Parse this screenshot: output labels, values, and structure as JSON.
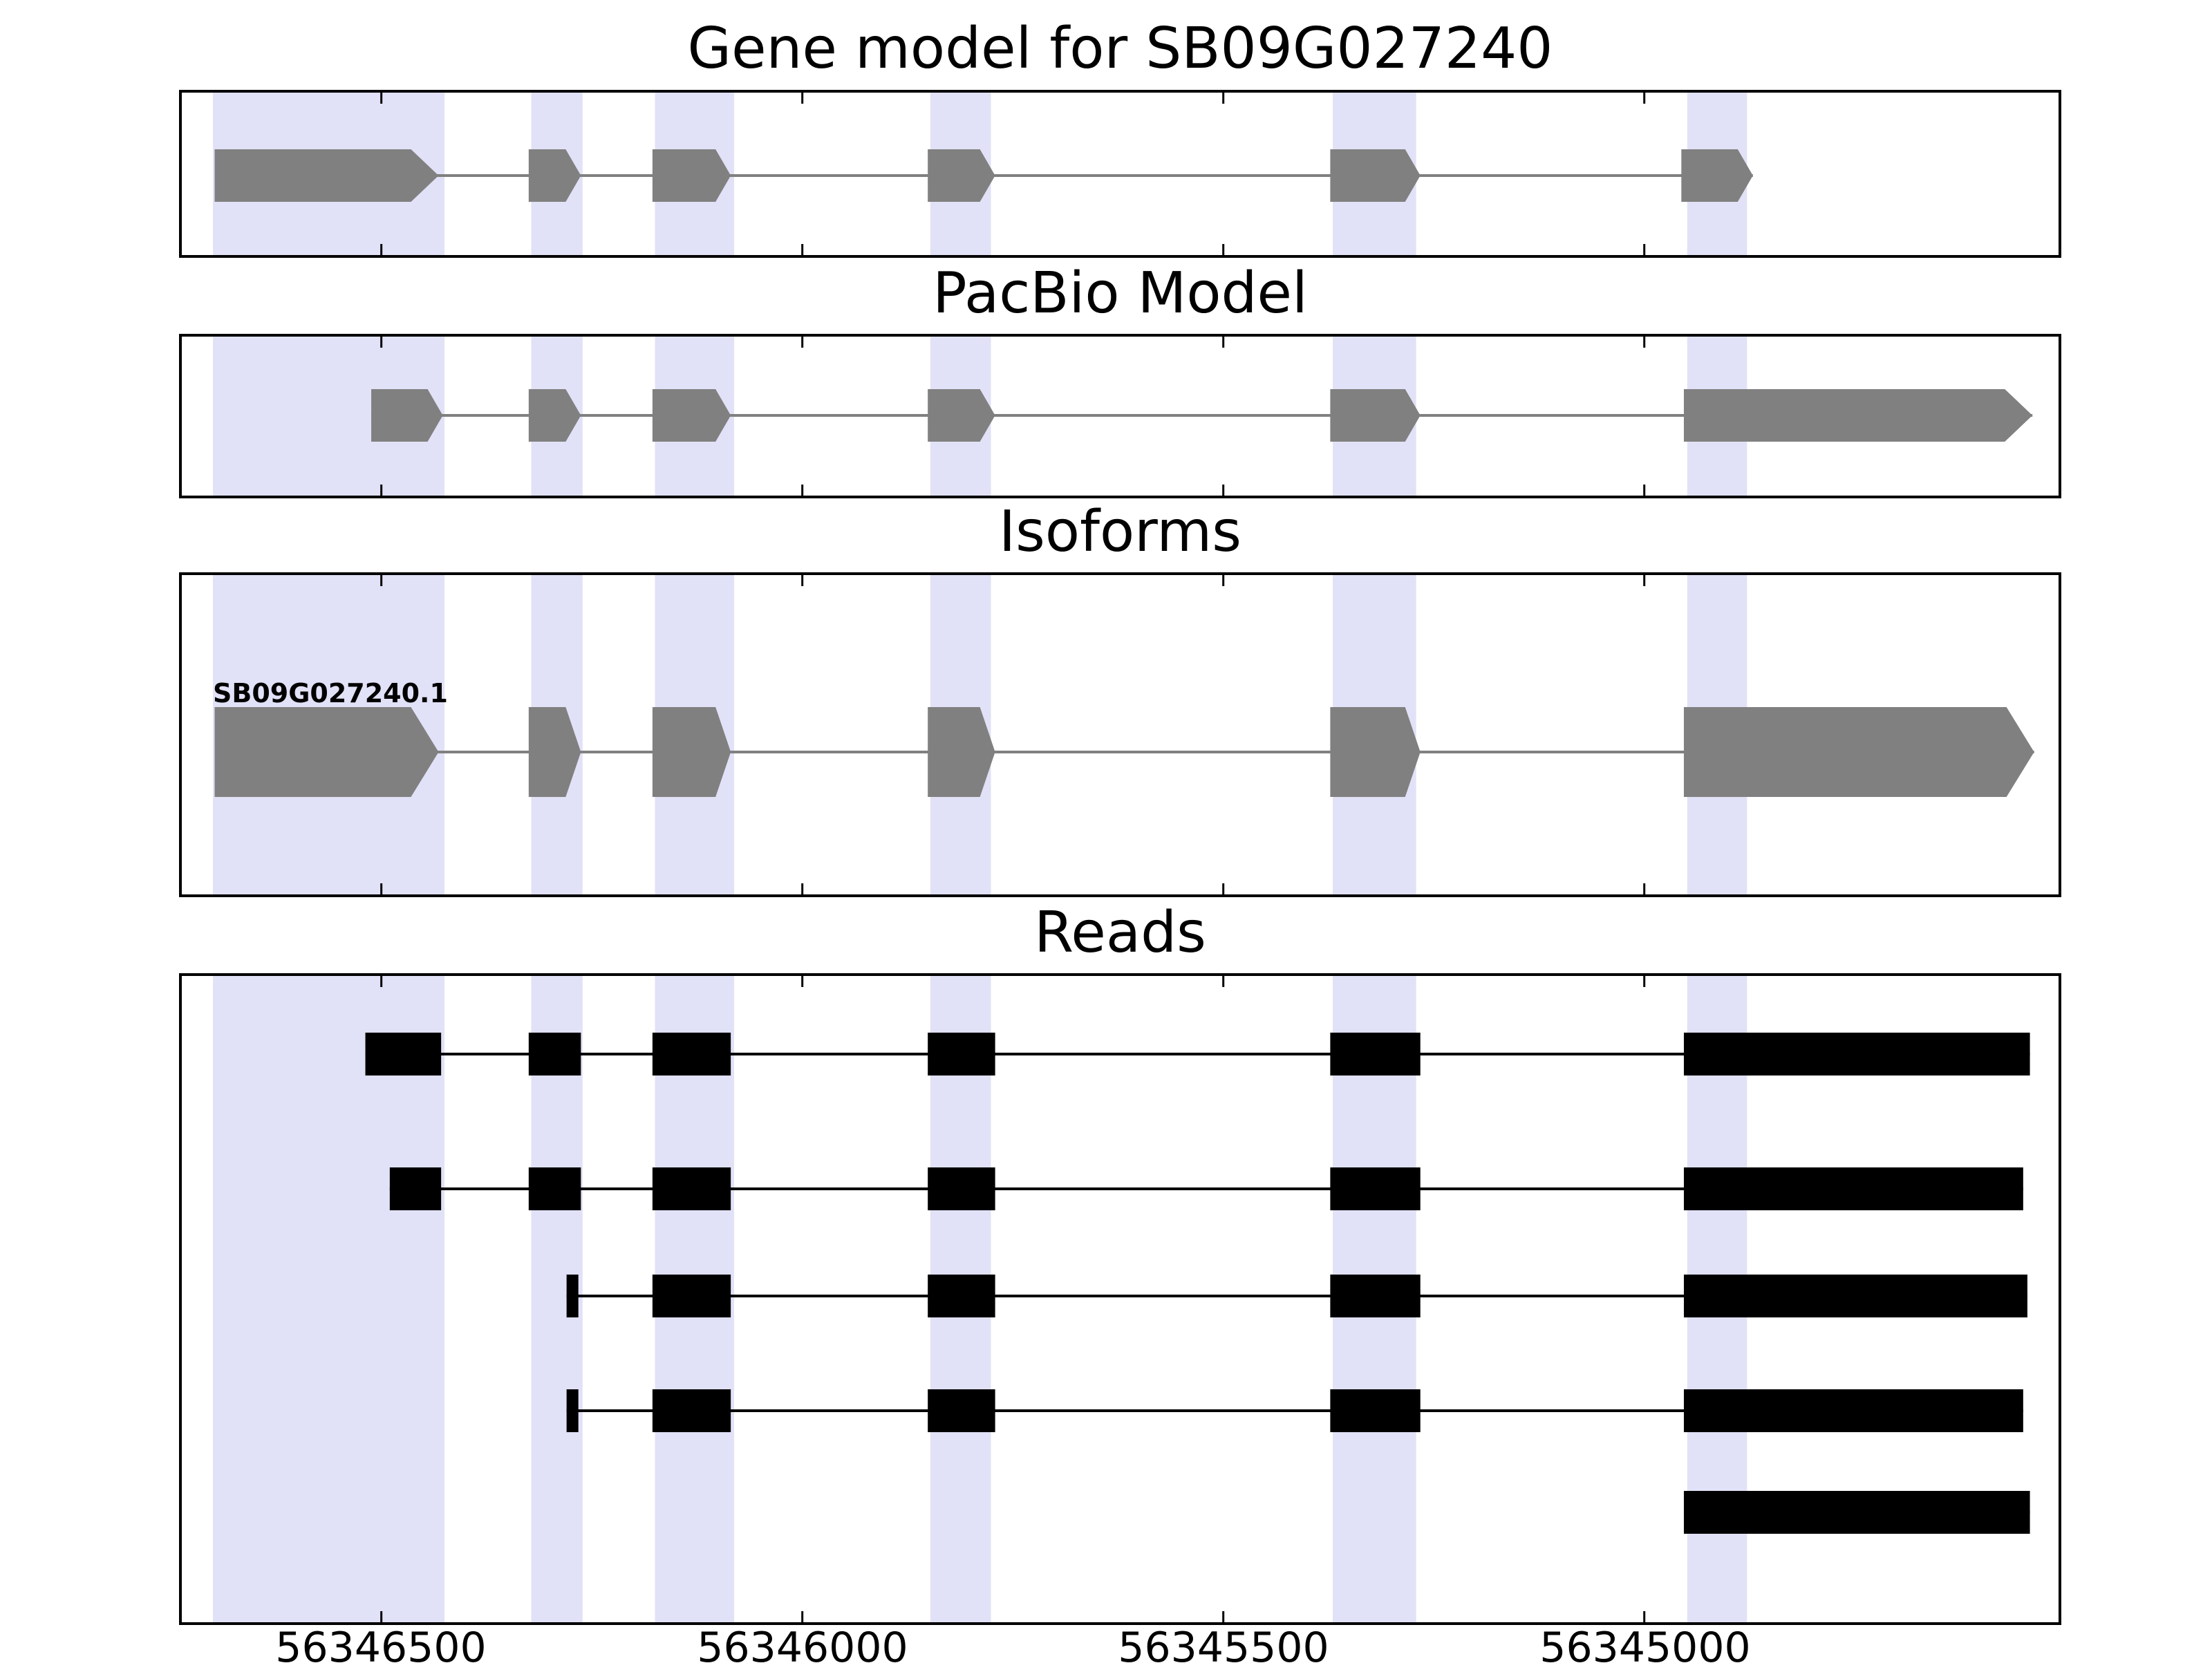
{
  "colors": {
    "exon": "#808080",
    "read": "#000000",
    "highlight": "#e1e1f7",
    "frame": "#000000"
  },
  "chart_data": {
    "type": "gene-model-tracks",
    "title": "Gene model for SB09G027240",
    "x_axis": {
      "xlim": [
        56346737,
        56344508
      ],
      "tick_values": [
        56346500,
        56346000,
        56345500,
        56345000
      ],
      "tick_labels": [
        "56346500",
        "56346000",
        "56345500",
        "56345000"
      ],
      "direction": "decreasing"
    },
    "highlight_regions": [
      [
        56346700,
        56346425
      ],
      [
        56346322,
        56346261
      ],
      [
        56346175,
        56346081
      ],
      [
        56345848,
        56345776
      ],
      [
        56345370,
        56345271
      ],
      [
        56344949,
        56344878
      ]
    ],
    "tracks": [
      {
        "name": "Gene model for SB09G027240",
        "color": "#808080",
        "features": [
          {
            "kind": "gene",
            "strand": "right",
            "exons": [
              [
                56346698,
                56346432
              ],
              [
                56346325,
                56346263
              ],
              [
                56346178,
                56346085
              ],
              [
                56345851,
                56345771
              ],
              [
                56345373,
                56345266
              ],
              [
                56344956,
                56344871
              ]
            ]
          }
        ]
      },
      {
        "name": "PacBio Model",
        "color": "#808080",
        "features": [
          {
            "kind": "gene",
            "strand": "right",
            "exons": [
              [
                56346512,
                56346427
              ],
              [
                56346325,
                56346263
              ],
              [
                56346178,
                56346085
              ],
              [
                56345851,
                56345771
              ],
              [
                56345373,
                56345266
              ],
              [
                56344953,
                56344539
              ]
            ]
          }
        ]
      },
      {
        "name": "Isoforms",
        "color": "#808080",
        "features": [
          {
            "kind": "gene",
            "label": "SB09G027240.1",
            "strand": "right",
            "exons": [
              [
                56346698,
                56346432
              ],
              [
                56346325,
                56346263
              ],
              [
                56346178,
                56346085
              ],
              [
                56345851,
                56345771
              ],
              [
                56345373,
                56345266
              ],
              [
                56344953,
                56344537
              ]
            ]
          }
        ]
      },
      {
        "name": "Reads",
        "color": "#000000",
        "features": [
          {
            "kind": "read",
            "exons": [
              [
                56346519,
                56346429
              ],
              [
                56346325,
                56346263
              ],
              [
                56346178,
                56346085
              ],
              [
                56345851,
                56345771
              ],
              [
                56345373,
                56345266
              ],
              [
                56344953,
                56344542
              ]
            ]
          },
          {
            "kind": "read",
            "exons": [
              [
                56346490,
                56346429
              ],
              [
                56346325,
                56346263
              ],
              [
                56346178,
                56346085
              ],
              [
                56345851,
                56345771
              ],
              [
                56345373,
                56345266
              ],
              [
                56344953,
                56344550
              ]
            ]
          },
          {
            "kind": "read",
            "exons": [
              [
                56346280,
                56346266
              ],
              [
                56346178,
                56346085
              ],
              [
                56345851,
                56345771
              ],
              [
                56345373,
                56345266
              ],
              [
                56344953,
                56344545
              ]
            ]
          },
          {
            "kind": "read",
            "exons": [
              [
                56346280,
                56346266
              ],
              [
                56346178,
                56346085
              ],
              [
                56345851,
                56345771
              ],
              [
                56345373,
                56345266
              ],
              [
                56344953,
                56344550
              ]
            ]
          },
          {
            "kind": "read",
            "exons": [
              [
                56344953,
                56344542
              ]
            ]
          }
        ]
      }
    ]
  }
}
